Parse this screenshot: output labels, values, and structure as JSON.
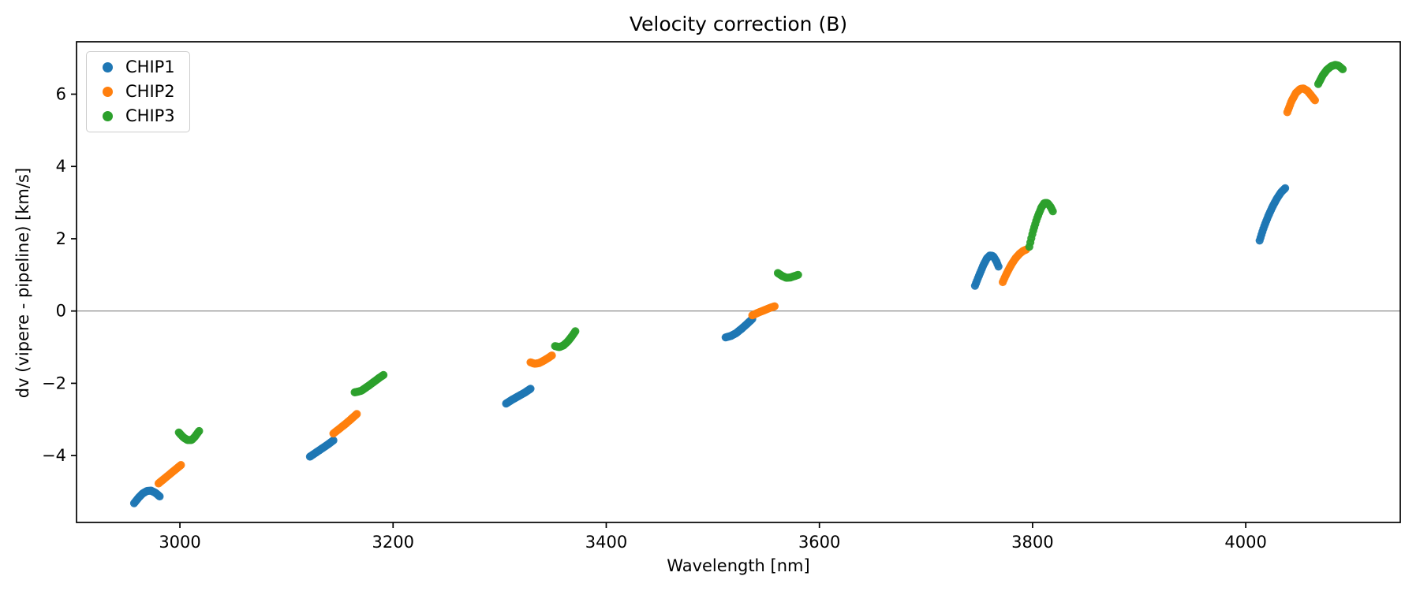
{
  "chart_data": {
    "type": "scatter",
    "title": "Velocity correction (B)",
    "xlabel": "Wavelength [nm]",
    "ylabel": "dv (vipere - pipeline) [km/s]",
    "xlim": [
      2903,
      4145
    ],
    "ylim": [
      -5.85,
      7.45
    ],
    "xticks": [
      3000,
      3200,
      3400,
      3600,
      3800,
      4000
    ],
    "yticks": [
      6,
      4,
      2,
      0,
      -2,
      -4
    ],
    "grid": false,
    "zero_line": {
      "y": 0,
      "color": "#808080"
    },
    "legend_position": "upper left",
    "axis_color": "#000000",
    "series": [
      {
        "name": "CHIP1",
        "color": "#1f77b4",
        "segments": [
          [
            [
              2957,
              -5.32
            ],
            [
              2961,
              -5.17
            ],
            [
              2965,
              -5.05
            ],
            [
              2969,
              -4.98
            ],
            [
              2973,
              -4.97
            ],
            [
              2977,
              -5.03
            ],
            [
              2981,
              -5.13
            ]
          ],
          [
            [
              3122,
              -4.03
            ],
            [
              3128,
              -3.91
            ],
            [
              3134,
              -3.79
            ],
            [
              3139,
              -3.69
            ],
            [
              3144,
              -3.58
            ]
          ],
          [
            [
              3306,
              -2.56
            ],
            [
              3312,
              -2.45
            ],
            [
              3318,
              -2.35
            ],
            [
              3324,
              -2.25
            ],
            [
              3329,
              -2.15
            ]
          ],
          [
            [
              3512,
              -0.73
            ],
            [
              3517,
              -0.69
            ],
            [
              3522,
              -0.61
            ],
            [
              3527,
              -0.49
            ],
            [
              3532,
              -0.36
            ],
            [
              3537,
              -0.22
            ]
          ],
          [
            [
              3746,
              0.7
            ],
            [
              3750,
              1.0
            ],
            [
              3754,
              1.28
            ],
            [
              3757,
              1.45
            ],
            [
              3760,
              1.54
            ],
            [
              3763,
              1.52
            ],
            [
              3766,
              1.38
            ],
            [
              3768,
              1.23
            ]
          ],
          [
            [
              4013,
              1.95
            ],
            [
              4017,
              2.32
            ],
            [
              4021,
              2.62
            ],
            [
              4025,
              2.88
            ],
            [
              4029,
              3.1
            ],
            [
              4033,
              3.28
            ],
            [
              4037,
              3.4
            ]
          ]
        ]
      },
      {
        "name": "CHIP2",
        "color": "#ff7f0e",
        "segments": [
          [
            [
              2980,
              -4.77
            ],
            [
              2987,
              -4.6
            ],
            [
              2994,
              -4.43
            ],
            [
              3001,
              -4.26
            ]
          ],
          [
            [
              3144,
              -3.39
            ],
            [
              3150,
              -3.25
            ],
            [
              3156,
              -3.11
            ],
            [
              3161,
              -2.98
            ],
            [
              3166,
              -2.85
            ]
          ],
          [
            [
              3329,
              -1.42
            ],
            [
              3333,
              -1.46
            ],
            [
              3337,
              -1.44
            ],
            [
              3341,
              -1.38
            ],
            [
              3345,
              -1.31
            ],
            [
              3349,
              -1.23
            ]
          ],
          [
            [
              3537,
              -0.12
            ],
            [
              3543,
              -0.04
            ],
            [
              3549,
              0.03
            ],
            [
              3553,
              0.08
            ],
            [
              3558,
              0.13
            ]
          ],
          [
            [
              3772,
              0.8
            ],
            [
              3776,
              1.06
            ],
            [
              3780,
              1.28
            ],
            [
              3784,
              1.46
            ],
            [
              3788,
              1.59
            ],
            [
              3791,
              1.66
            ],
            [
              3794,
              1.7
            ]
          ],
          [
            [
              4039,
              5.5
            ],
            [
              4043,
              5.81
            ],
            [
              4047,
              6.03
            ],
            [
              4051,
              6.14
            ],
            [
              4054,
              6.16
            ],
            [
              4058,
              6.09
            ],
            [
              4061,
              5.98
            ],
            [
              4065,
              5.83
            ]
          ]
        ]
      },
      {
        "name": "CHIP3",
        "color": "#2ca02c",
        "segments": [
          [
            [
              2999,
              -3.36
            ],
            [
              3003,
              -3.49
            ],
            [
              3007,
              -3.57
            ],
            [
              3011,
              -3.57
            ],
            [
              3014,
              -3.48
            ],
            [
              3018,
              -3.32
            ]
          ],
          [
            [
              3164,
              -2.25
            ],
            [
              3170,
              -2.21
            ],
            [
              3176,
              -2.09
            ],
            [
              3182,
              -1.96
            ],
            [
              3187,
              -1.85
            ],
            [
              3191,
              -1.77
            ]
          ],
          [
            [
              3352,
              -0.97
            ],
            [
              3356,
              -1.0
            ],
            [
              3360,
              -0.95
            ],
            [
              3364,
              -0.84
            ],
            [
              3368,
              -0.69
            ],
            [
              3371,
              -0.56
            ]
          ],
          [
            [
              3561,
              1.05
            ],
            [
              3565,
              0.97
            ],
            [
              3569,
              0.92
            ],
            [
              3573,
              0.93
            ],
            [
              3577,
              0.97
            ],
            [
              3580,
              1.0
            ]
          ],
          [
            [
              3797,
              1.78
            ],
            [
              3800,
              2.16
            ],
            [
              3804,
              2.55
            ],
            [
              3808,
              2.85
            ],
            [
              3811,
              2.99
            ],
            [
              3814,
              2.99
            ],
            [
              3817,
              2.88
            ],
            [
              3819,
              2.76
            ]
          ],
          [
            [
              4068,
              6.28
            ],
            [
              4072,
              6.51
            ],
            [
              4076,
              6.67
            ],
            [
              4080,
              6.77
            ],
            [
              4084,
              6.81
            ],
            [
              4087,
              6.79
            ],
            [
              4091,
              6.69
            ]
          ]
        ]
      }
    ]
  }
}
